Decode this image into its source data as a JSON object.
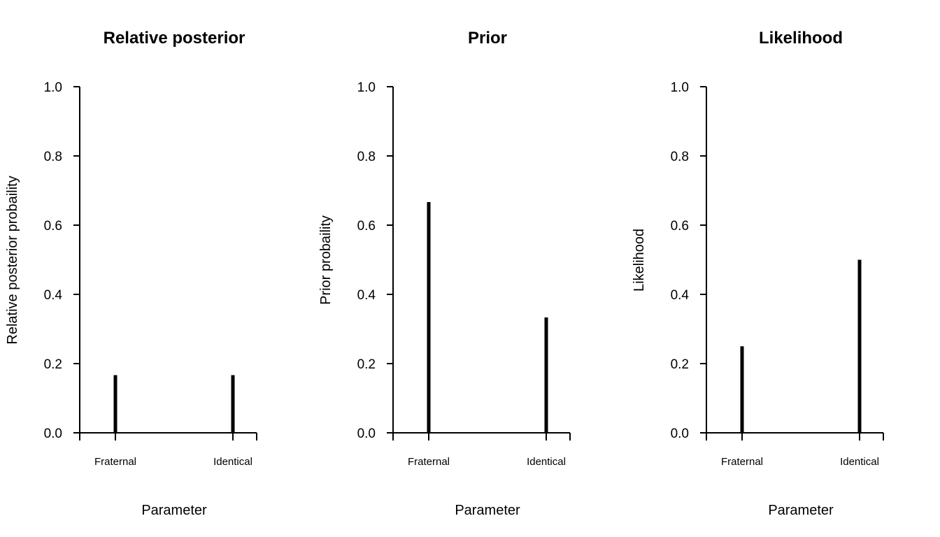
{
  "chart_data": [
    {
      "type": "bar",
      "title": "Relative posterior",
      "xlabel": "Parameter",
      "ylabel": "Relative posterior probaility",
      "categories": [
        "Fraternal",
        "Identical"
      ],
      "values": [
        0.1667,
        0.1667
      ],
      "ylim": [
        0,
        1
      ],
      "yticks": [
        "0.0",
        "0.2",
        "0.4",
        "0.6",
        "0.8",
        "1.0"
      ],
      "grid": false
    },
    {
      "type": "bar",
      "title": "Prior",
      "xlabel": "Parameter",
      "ylabel": "Prior probaility",
      "categories": [
        "Fraternal",
        "Identical"
      ],
      "values": [
        0.6667,
        0.3333
      ],
      "ylim": [
        0,
        1
      ],
      "yticks": [
        "0.0",
        "0.2",
        "0.4",
        "0.6",
        "0.8",
        "1.0"
      ],
      "grid": false
    },
    {
      "type": "bar",
      "title": "Likelihood",
      "xlabel": "Parameter",
      "ylabel": "Likelihood",
      "categories": [
        "Fraternal",
        "Identical"
      ],
      "values": [
        0.25,
        0.5
      ],
      "ylim": [
        0,
        1
      ],
      "yticks": [
        "0.0",
        "0.2",
        "0.4",
        "0.6",
        "0.8",
        "1.0"
      ],
      "grid": false
    }
  ]
}
